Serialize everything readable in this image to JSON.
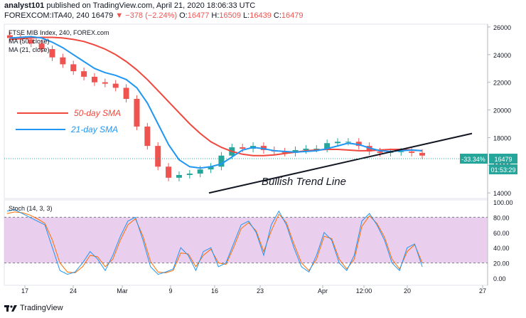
{
  "header": {
    "author": "analyst101",
    "published_text": "published on TradingView.com, April 21, 2020 18:06:33 UTC",
    "symbol": "FOREXCOM:ITA40, 240",
    "last": "16479",
    "change": "▼ −378 (−2.24%)",
    "o_label": "O:",
    "o_value": "16477",
    "h_label": "H:",
    "h_value": "16509",
    "l_label": "L:",
    "l_value": "16439",
    "c_label": "C:",
    "c_value": "16479"
  },
  "legend": {
    "title": "FTSE MIB Index, 240, FOREX.com",
    "ma1": "MA (50, close)",
    "ma2": "MA (21, close)"
  },
  "annotations": {
    "sma50": "50-day SMA",
    "sma21": "21-day SMA",
    "trend": "Bullish Trend Line",
    "pct_badge": "-33.34%",
    "price_badge": "16479",
    "time_badge": "01:53:29",
    "stoch_label": "Stoch (14, 3, 3)"
  },
  "footer": {
    "brand": "TradingView"
  },
  "colors": {
    "up": "#26a69a",
    "down": "#ef5350",
    "ma50": "#f0483e",
    "ma21": "#2196f3",
    "k": "#2196f3",
    "d": "#ff6d00",
    "band": "#e1bee7",
    "badge": "#26a69a"
  },
  "chart_data": [
    {
      "type": "candlestick",
      "title": "FTSE MIB Index, 240, FOREX.com",
      "x_ticks": [
        "17",
        "24",
        "Mar",
        "9",
        "16",
        "23",
        "Apr",
        "12:00",
        "20",
        "27"
      ],
      "y_ticks": [
        14000,
        16000,
        18000,
        20000,
        22000,
        24000,
        26000
      ],
      "ylim": [
        13600,
        26200
      ],
      "ma_series": [
        {
          "name": "MA (50, close)",
          "values": [
            25100,
            25150,
            25200,
            25250,
            25250,
            25200,
            25100,
            24950,
            24700,
            24400,
            24000,
            23500,
            22900,
            22200,
            21400,
            20600,
            19800,
            19000,
            18300,
            17700,
            17300,
            17000,
            16800,
            16700,
            16700,
            16750,
            16850,
            16950,
            17050,
            17100,
            17150,
            17150,
            17100,
            17050,
            17050,
            17100,
            17150,
            17150,
            17100,
            17050
          ]
        },
        {
          "name": "MA (21, close)",
          "values": [
            25200,
            25250,
            25300,
            25200,
            24900,
            24500,
            24000,
            23500,
            23000,
            22700,
            22500,
            22200,
            21600,
            20500,
            19000,
            17500,
            16400,
            15900,
            15800,
            15900,
            16100,
            16600,
            17100,
            17300,
            17200,
            17050,
            17000,
            16950,
            17000,
            17050,
            17200,
            17400,
            17600,
            17500,
            17250,
            17050,
            17000,
            17050,
            17100,
            17050
          ]
        }
      ],
      "trend_line": {
        "label": "Bullish Trend Line",
        "from": 14000,
        "to": 18300
      },
      "last_price": 16479,
      "change_pct": "-33.34%"
    },
    {
      "type": "line",
      "title": "Stoch (14, 3, 3)",
      "y_ticks": [
        0,
        20,
        40,
        60,
        80,
        100
      ],
      "ylim": [
        0,
        100
      ],
      "overbought": 80,
      "oversold": 20,
      "series": [
        {
          "name": "%K",
          "values": [
            88,
            90,
            85,
            80,
            75,
            70,
            40,
            10,
            5,
            8,
            20,
            35,
            25,
            10,
            30,
            55,
            75,
            80,
            50,
            15,
            5,
            8,
            12,
            40,
            30,
            10,
            35,
            40,
            15,
            20,
            45,
            70,
            75,
            60,
            30,
            70,
            88,
            70,
            40,
            15,
            8,
            30,
            60,
            50,
            20,
            10,
            30,
            75,
            85,
            70,
            50,
            20,
            10,
            40,
            45,
            15
          ]
        },
        {
          "name": "%D",
          "values": [
            85,
            87,
            86,
            83,
            78,
            72,
            50,
            20,
            8,
            7,
            15,
            30,
            28,
            15,
            25,
            50,
            70,
            78,
            55,
            22,
            8,
            7,
            10,
            33,
            32,
            15,
            30,
            38,
            20,
            18,
            40,
            65,
            73,
            62,
            35,
            62,
            84,
            73,
            45,
            20,
            10,
            25,
            55,
            52,
            25,
            12,
            25,
            68,
            82,
            72,
            54,
            25,
            12,
            35,
            44,
            20
          ]
        }
      ]
    }
  ]
}
